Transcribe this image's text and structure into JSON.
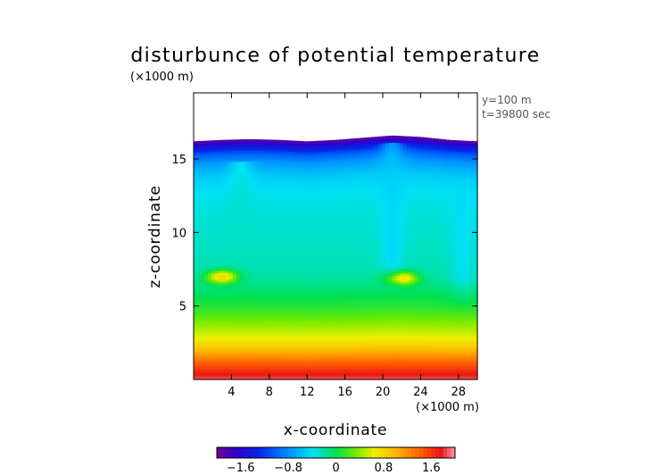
{
  "chart_data": {
    "type": "heatmap",
    "title": "disturbunce of potential temperature",
    "unit_y": "(×1000 m)",
    "unit_x": "(×1000 m)",
    "annotations": [
      "y=100 m",
      "t=39800 sec"
    ],
    "xlabel": "x-coordinate",
    "ylabel": "z-coordinate",
    "xlim": [
      0,
      30
    ],
    "ylim": [
      0,
      19.5
    ],
    "xticks": [
      "4",
      "8",
      "12",
      "16",
      "20",
      "24",
      "28"
    ],
    "xtick_values": [
      4,
      8,
      12,
      16,
      20,
      24,
      28
    ],
    "yticks": [
      "5",
      "10",
      "15"
    ],
    "ytick_values": [
      5,
      10,
      15
    ],
    "colorbar": {
      "ticks": [
        "−1.6",
        "−0.8",
        "0",
        "0.8",
        "1.6"
      ],
      "tick_values": [
        -1.6,
        -0.8,
        0,
        0.8,
        1.6
      ],
      "range": [
        -2.0,
        2.0
      ]
    },
    "field": {
      "top_surface_z": [
        16.2,
        16.3,
        16.35,
        16.3,
        16.2,
        16.3,
        16.45,
        16.6,
        16.5,
        16.3,
        16.2
      ],
      "top_surface_x": [
        0,
        3,
        6,
        9,
        12,
        15,
        18,
        21,
        24,
        27,
        30
      ],
      "vertical_profile": {
        "z": [
          0,
          0.6,
          1.2,
          1.8,
          2.4,
          3.0,
          3.6,
          4.2,
          4.8,
          5.4,
          6.0,
          7.0,
          8.0,
          10.0,
          12.0,
          13.0,
          14.0,
          15.0,
          15.6,
          16.0,
          16.5
        ],
        "value": [
          1.9,
          1.65,
          1.4,
          1.1,
          0.8,
          0.6,
          0.45,
          0.3,
          0.15,
          0.05,
          -0.05,
          -0.2,
          -0.25,
          -0.3,
          -0.35,
          -0.4,
          -0.5,
          -0.75,
          -1.05,
          -1.4,
          -1.9
        ]
      },
      "warm_pockets": [
        {
          "x": 3.0,
          "z": 7.1,
          "peak": 0.85
        },
        {
          "x": 22.0,
          "z": 6.9,
          "peak": 0.9
        }
      ],
      "cold_plumes": [
        {
          "x": 21.0,
          "z_top": 16.0,
          "z_bottom": 8.0,
          "peak": -0.5
        },
        {
          "x": 5.0,
          "z_top": 15.0,
          "z_bottom": 11.0,
          "peak": -0.3
        },
        {
          "x": 28.5,
          "z_top": 14.0,
          "z_bottom": 7.0,
          "peak": -0.45
        }
      ]
    }
  }
}
